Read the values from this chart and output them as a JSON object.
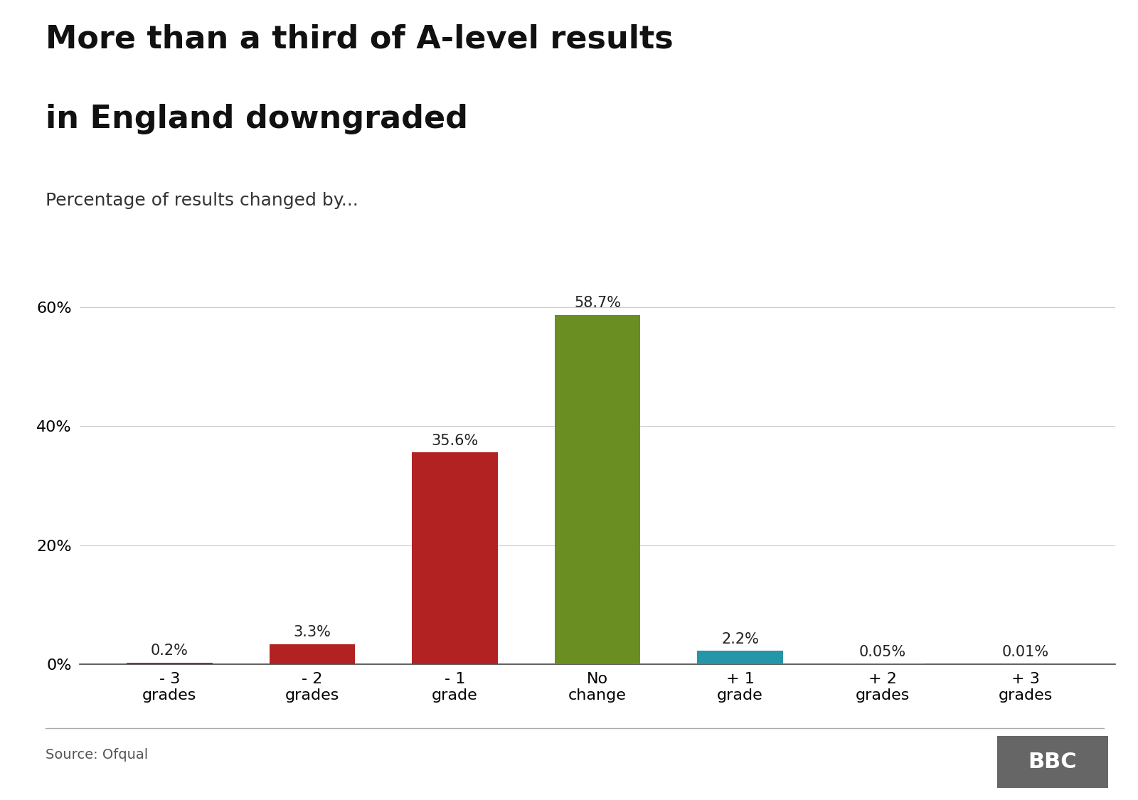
{
  "title_line1": "More than a third of A-level results",
  "title_line2": "in England downgraded",
  "subtitle": "Percentage of results changed by...",
  "categories": [
    "- 3\ngrades",
    "- 2\ngrades",
    "- 1\ngrade",
    "No\nchange",
    "+ 1\ngrade",
    "+ 2\ngrades",
    "+ 3\ngrades"
  ],
  "values": [
    0.2,
    3.3,
    35.6,
    58.7,
    2.2,
    0.05,
    0.01
  ],
  "labels": [
    "0.2%",
    "3.3%",
    "35.6%",
    "58.7%",
    "2.2%",
    "0.05%",
    "0.01%"
  ],
  "colors": [
    "#b22222",
    "#b22222",
    "#b22222",
    "#6b8e23",
    "#2496a8",
    "#2496a8",
    "#2496a8"
  ],
  "source": "Source: Ofqual",
  "background_color": "#ffffff",
  "title_fontsize": 32,
  "subtitle_fontsize": 18,
  "tick_fontsize": 16,
  "label_fontsize": 15,
  "ylim": [
    0,
    70
  ],
  "yticks": [
    0,
    20,
    40,
    60
  ]
}
